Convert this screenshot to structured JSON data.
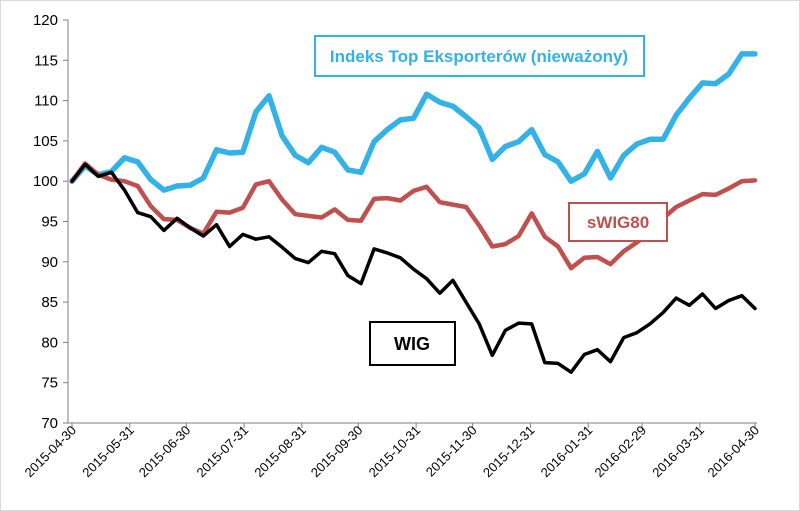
{
  "chart_data": {
    "type": "line",
    "title": "",
    "xlabel": "",
    "ylabel": "",
    "ylim": [
      70,
      120
    ],
    "yticks": [
      70,
      75,
      80,
      85,
      90,
      95,
      100,
      105,
      110,
      115,
      120
    ],
    "ytick_labels": [
      "70",
      "75",
      "80",
      "85",
      "90",
      "95",
      "100",
      "105",
      "110",
      "115",
      "120"
    ],
    "grid": false,
    "x_count": 53,
    "x_tick_labels": [
      {
        "i": 0,
        "label": "2015-04-30"
      },
      {
        "i": 4.4,
        "label": "2015-05-31"
      },
      {
        "i": 8.7,
        "label": "2015-06-30"
      },
      {
        "i": 13.1,
        "label": "2015-07-31"
      },
      {
        "i": 17.5,
        "label": "2015-08-31"
      },
      {
        "i": 21.8,
        "label": "2015-09-30"
      },
      {
        "i": 26.2,
        "label": "2015-10-31"
      },
      {
        "i": 30.5,
        "label": "2015-11-30"
      },
      {
        "i": 34.9,
        "label": "2015-12-31"
      },
      {
        "i": 39.3,
        "label": "2016-01-31"
      },
      {
        "i": 43.4,
        "label": "2016-02-29"
      },
      {
        "i": 47.8,
        "label": "2016-03-31"
      },
      {
        "i": 52,
        "label": "2016-04-30"
      }
    ],
    "series": [
      {
        "name": "Indeks Top Eksporterów (nieważony)",
        "color": "#33b2e8",
        "values": [
          100,
          101.9,
          100.8,
          101.2,
          102.9,
          102.4,
          100.2,
          98.9,
          99.4,
          99.5,
          100.4,
          103.9,
          103.5,
          103.6,
          108.6,
          110.6,
          105.6,
          103.2,
          102.3,
          104.2,
          103.6,
          101.4,
          101.1,
          104.9,
          106.4,
          107.6,
          107.8,
          110.8,
          109.8,
          109.3,
          108.0,
          106.6,
          102.7,
          104.3,
          104.9,
          106.4,
          103.3,
          102.4,
          100.0,
          100.9,
          103.7,
          100.4,
          103.2,
          104.6,
          105.2,
          105.2,
          108.2,
          110.3,
          112.2,
          112.1,
          113.3,
          115.8,
          115.8
        ]
      },
      {
        "name": "sWIG80",
        "color": "#c0504d",
        "values": [
          100,
          102.2,
          100.8,
          100.2,
          100.0,
          99.4,
          96.9,
          95.3,
          95.2,
          94.2,
          93.5,
          96.2,
          96.1,
          96.7,
          99.6,
          100.0,
          97.7,
          95.9,
          95.7,
          95.5,
          96.5,
          95.2,
          95.1,
          97.8,
          97.9,
          97.6,
          98.8,
          99.3,
          97.4,
          97.1,
          96.8,
          94.5,
          91.9,
          92.2,
          93.2,
          96.0,
          93.1,
          91.9,
          89.2,
          90.5,
          90.6,
          89.7,
          91.3,
          92.4,
          93.6,
          95.4,
          96.8,
          97.6,
          98.4,
          98.3,
          99.1,
          100.0,
          100.1
        ]
      },
      {
        "name": "WIG",
        "color": "#000000",
        "values": [
          100,
          102.1,
          100.6,
          101.1,
          98.9,
          96.1,
          95.6,
          93.9,
          95.4,
          94.2,
          93.2,
          94.6,
          91.9,
          93.4,
          92.8,
          93.1,
          91.8,
          90.4,
          89.9,
          91.3,
          91.0,
          88.3,
          87.3,
          91.6,
          91.1,
          90.5,
          89.1,
          87.9,
          86.1,
          87.7,
          85.0,
          82.3,
          78.4,
          81.5,
          82.4,
          82.3,
          77.5,
          77.4,
          76.3,
          78.5,
          79.1,
          77.6,
          80.6,
          81.2,
          82.3,
          83.7,
          85.5,
          84.6,
          86.0,
          84.2,
          85.2,
          85.8,
          84.2
        ]
      }
    ],
    "annotations": [
      {
        "series": 0,
        "text": "Indeks Top Eksporterów (nieważony)"
      },
      {
        "series": 1,
        "text": "sWIG80"
      },
      {
        "series": 2,
        "text": "WIG"
      }
    ]
  }
}
